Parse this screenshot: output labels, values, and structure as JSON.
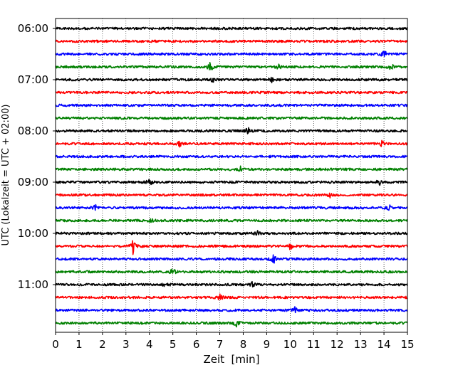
{
  "chart_data": {
    "type": "line",
    "title": "",
    "xlabel": "Zeit  [min]",
    "ylabel": "UTC (Lokalzeit = UTC + 02:00)",
    "xlim": [
      0,
      15
    ],
    "x_ticks": [
      "0",
      "1",
      "2",
      "3",
      "4",
      "5",
      "6",
      "7",
      "8",
      "9",
      "10",
      "11",
      "12",
      "13",
      "14",
      "15"
    ],
    "y_tick_labels": [
      "06:00",
      "07:00",
      "08:00",
      "09:00",
      "10:00",
      "11:00"
    ],
    "grid": "vertical dotted at each minute",
    "line_interval_minutes": 15,
    "trace_colors": [
      "#000000",
      "#ff0000",
      "#0000ff",
      "#008000"
    ],
    "series": [
      {
        "start": "06:00",
        "color": "#000000",
        "events": []
      },
      {
        "start": "06:15",
        "color": "#ff0000",
        "events": []
      },
      {
        "start": "06:30",
        "color": "#0000ff",
        "events": [
          {
            "t": 14.0,
            "amp": 6
          }
        ]
      },
      {
        "start": "06:45",
        "color": "#008000",
        "events": [
          {
            "t": 6.6,
            "amp": 8
          },
          {
            "t": 9.5,
            "amp": 4
          },
          {
            "t": 14.3,
            "amp": 5
          }
        ]
      },
      {
        "start": "07:00",
        "color": "#000000",
        "events": [
          {
            "t": 6.7,
            "amp": 4
          },
          {
            "t": 9.2,
            "amp": 4
          }
        ]
      },
      {
        "start": "07:15",
        "color": "#ff0000",
        "events": []
      },
      {
        "start": "07:30",
        "color": "#0000ff",
        "events": []
      },
      {
        "start": "07:45",
        "color": "#008000",
        "events": []
      },
      {
        "start": "08:00",
        "color": "#000000",
        "events": [
          {
            "t": 8.2,
            "amp": 5
          }
        ]
      },
      {
        "start": "08:15",
        "color": "#ff0000",
        "events": [
          {
            "t": 5.3,
            "amp": 4
          },
          {
            "t": 13.9,
            "amp": 4
          }
        ]
      },
      {
        "start": "08:30",
        "color": "#0000ff",
        "events": []
      },
      {
        "start": "08:45",
        "color": "#008000",
        "events": [
          {
            "t": 7.9,
            "amp": 4
          }
        ]
      },
      {
        "start": "09:00",
        "color": "#000000",
        "events": [
          {
            "t": 4.0,
            "amp": 5
          },
          {
            "t": 13.8,
            "amp": 4
          }
        ]
      },
      {
        "start": "09:15",
        "color": "#ff0000",
        "events": [
          {
            "t": 11.7,
            "amp": 4
          }
        ]
      },
      {
        "start": "09:30",
        "color": "#0000ff",
        "events": [
          {
            "t": 1.7,
            "amp": 4
          },
          {
            "t": 14.2,
            "amp": 5
          }
        ]
      },
      {
        "start": "09:45",
        "color": "#008000",
        "events": [
          {
            "t": 4.1,
            "amp": 4
          }
        ]
      },
      {
        "start": "10:00",
        "color": "#000000",
        "events": [
          {
            "t": 8.6,
            "amp": 4
          }
        ]
      },
      {
        "start": "10:15",
        "color": "#ff0000",
        "events": [
          {
            "t": 3.3,
            "amp": 12
          },
          {
            "t": 10.0,
            "amp": 6
          }
        ]
      },
      {
        "start": "10:30",
        "color": "#0000ff",
        "events": [
          {
            "t": 9.3,
            "amp": 7
          }
        ]
      },
      {
        "start": "10:45",
        "color": "#008000",
        "events": [
          {
            "t": 5.0,
            "amp": 5
          }
        ]
      },
      {
        "start": "11:00",
        "color": "#000000",
        "events": [
          {
            "t": 4.7,
            "amp": 4
          },
          {
            "t": 8.4,
            "amp": 4
          }
        ]
      },
      {
        "start": "11:15",
        "color": "#ff0000",
        "events": [
          {
            "t": 7.0,
            "amp": 5
          }
        ]
      },
      {
        "start": "11:30",
        "color": "#0000ff",
        "events": [
          {
            "t": 10.2,
            "amp": 4
          }
        ]
      },
      {
        "start": "11:45",
        "color": "#008000",
        "events": [
          {
            "t": 7.7,
            "amp": 5
          }
        ]
      }
    ]
  }
}
